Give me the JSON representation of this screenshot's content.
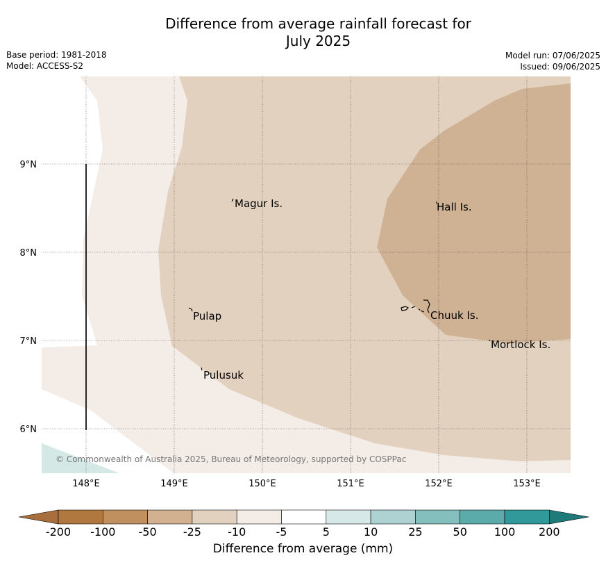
{
  "title": {
    "line1": "Difference from average rainfall forecast for",
    "line2": "July 2025"
  },
  "meta": {
    "base_period": "Base period: 1981-2018",
    "model": "Model: ACCESS-S2",
    "model_run": "Model run: 07/06/2025",
    "issued": "Issued: 09/06/2025"
  },
  "map": {
    "lat_labels": [
      "9°N",
      "8°N",
      "7°N",
      "6°N"
    ],
    "lon_labels": [
      "148°E",
      "149°E",
      "150°E",
      "151°E",
      "152°E",
      "153°E"
    ],
    "places": [
      {
        "name": "Magur Is."
      },
      {
        "name": "Hall Is."
      },
      {
        "name": "Pulap"
      },
      {
        "name": "Chuuk Is."
      },
      {
        "name": "Mortlock Is."
      },
      {
        "name": "Pulusuk"
      }
    ],
    "copyright": "© Commonwealth of Australia 2025, Bureau of Meteorology, supported by COSPPac"
  },
  "colorbar": {
    "label": "Difference from average (mm)",
    "ticks": [
      "-200",
      "-100",
      "-50",
      "-25",
      "-10",
      "-5",
      "5",
      "10",
      "25",
      "50",
      "100",
      "200"
    ],
    "colors": [
      "#a86f3c",
      "#b0773f",
      "#c0915f",
      "#d1b18f",
      "#e3d1bf",
      "#f4ece7",
      "#ffffff",
      "#d6e8e7",
      "#aed2d1",
      "#84bfbe",
      "#5aabaa",
      "#31999a",
      "#1f7b7a"
    ],
    "class_colors": {
      "lt_25": "#cfb193",
      "lt_10": "#e3d1bf",
      "lt_5": "#f4ece7",
      "mid": "#ffffff",
      "gt_5": "#d4e8e6"
    }
  }
}
